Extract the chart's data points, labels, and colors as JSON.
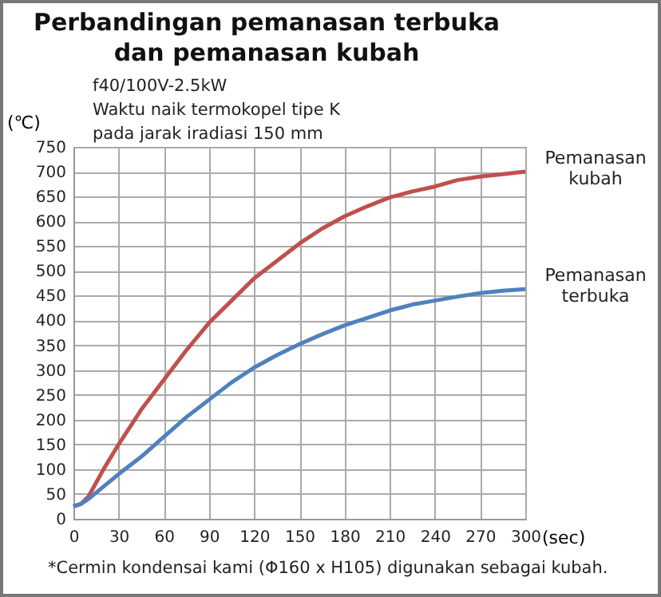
{
  "chart_data": {
    "type": "line",
    "title": "Perbandingan pemanasan terbuka\ndan pemanasan kubah",
    "annotations": [
      "f40/100V-2.5kW",
      "Waktu naik termokopel tipe K",
      "pada jarak iradiasi 150 mm",
      "*Cermin kondensai kami (Φ160 x H105) digunakan sebagai kubah."
    ],
    "xlabel": "(sec)",
    "ylabel": "(℃)",
    "x": [
      0,
      5,
      10,
      20,
      30,
      45,
      60,
      75,
      90,
      105,
      120,
      135,
      150,
      165,
      180,
      195,
      210,
      225,
      240,
      255,
      270,
      285,
      300
    ],
    "series": [
      {
        "name": "Pemanasan kubah",
        "color": "#c0504d",
        "values": [
          25,
          30,
          45,
          100,
          150,
          220,
          280,
          340,
          395,
          440,
          485,
          520,
          555,
          585,
          610,
          630,
          648,
          660,
          670,
          683,
          690,
          695,
          700
        ]
      },
      {
        "name": "Pemanasan terbuka",
        "color": "#4f81bd",
        "values": [
          25,
          30,
          40,
          65,
          90,
          125,
          165,
          205,
          240,
          275,
          305,
          330,
          352,
          372,
          390,
          405,
          420,
          432,
          440,
          448,
          455,
          460,
          463
        ]
      }
    ],
    "xlim": [
      0,
      300
    ],
    "xticks": [
      0,
      30,
      60,
      90,
      120,
      150,
      180,
      210,
      240,
      270,
      300
    ],
    "ylim": [
      0,
      750
    ],
    "yticks": [
      0,
      50,
      100,
      150,
      200,
      250,
      300,
      350,
      400,
      450,
      500,
      550,
      600,
      650,
      700,
      750
    ],
    "grid": true,
    "legend": false,
    "marker": "none",
    "line_style": "solid"
  }
}
